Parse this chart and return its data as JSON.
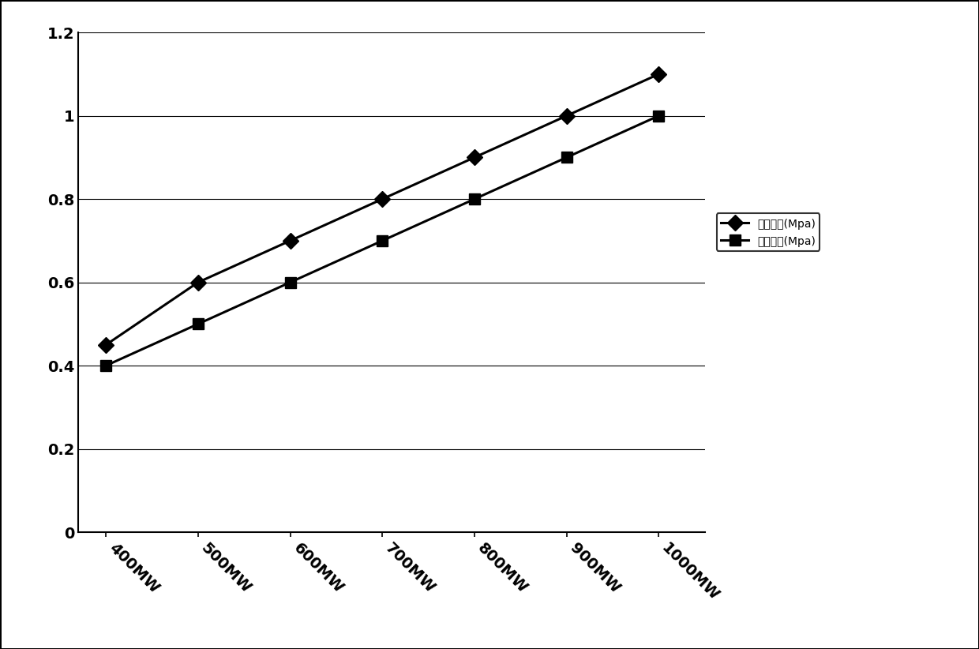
{
  "categories": [
    "400MW",
    "500MW",
    "600MW",
    "700MW",
    "800MW",
    "900MW",
    "1000MW"
  ],
  "series1_name": "实际压力(Mpa)",
  "series1_values": [
    0.45,
    0.6,
    0.7,
    0.8,
    0.9,
    1.0,
    1.1
  ],
  "series2_name": "控制压力(Mpa)",
  "series2_values": [
    0.4,
    0.5,
    0.6,
    0.7,
    0.8,
    0.9,
    1.0
  ],
  "series1_color": "#000000",
  "series2_color": "#000000",
  "series1_marker": "D",
  "series2_marker": "s",
  "series1_markersize": 10,
  "series2_markersize": 10,
  "ylim": [
    0,
    1.2
  ],
  "yticks": [
    0,
    0.2,
    0.4,
    0.6,
    0.8,
    1.0,
    1.2
  ],
  "background_color": "#ffffff",
  "grid_color": "#000000",
  "linewidth": 2.2,
  "tick_rotation": -45,
  "legend_fontsize": 14,
  "tick_fontsize": 14,
  "border_color": "#000000",
  "figure_border": true
}
